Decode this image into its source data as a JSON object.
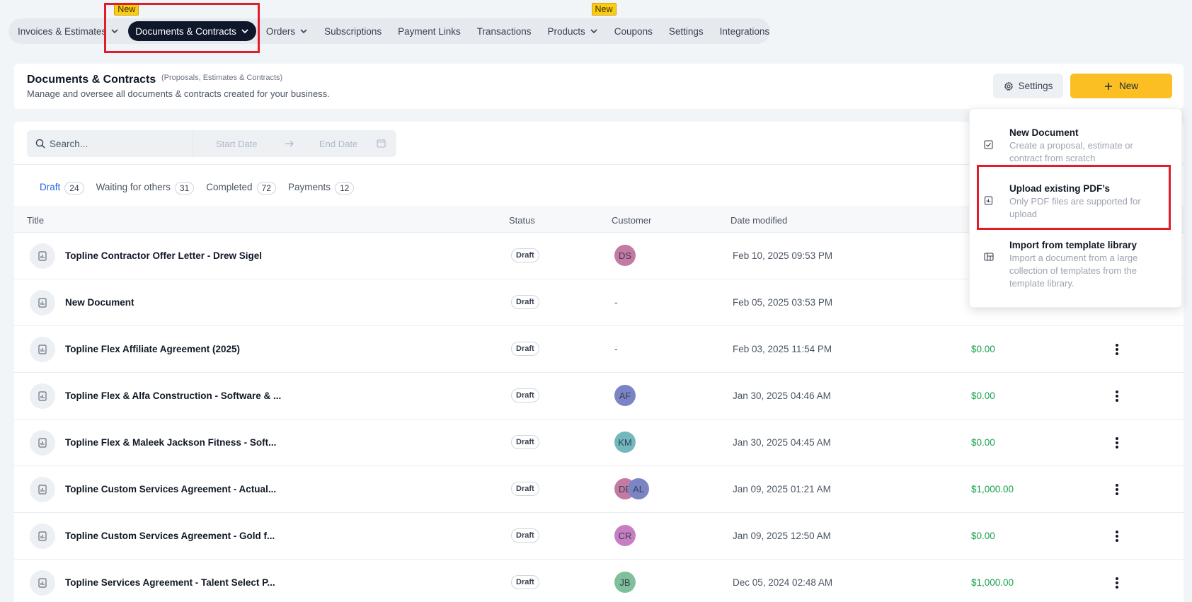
{
  "nav": {
    "items": [
      {
        "label": "Invoices & Estimates",
        "has_chevron": true
      },
      {
        "label": "Documents & Contracts",
        "has_chevron": true,
        "active": true,
        "badge": "New"
      },
      {
        "label": "Orders",
        "has_chevron": true
      },
      {
        "label": "Subscriptions"
      },
      {
        "label": "Payment Links"
      },
      {
        "label": "Transactions"
      },
      {
        "label": "Products",
        "has_chevron": true,
        "badge": "New"
      },
      {
        "label": "Coupons"
      },
      {
        "label": "Settings"
      },
      {
        "label": "Integrations"
      }
    ]
  },
  "header": {
    "title": "Documents & Contracts",
    "subtitle": "(Proposals, Estimates & Contracts)",
    "description": "Manage and oversee all documents & contracts created for your business.",
    "settings_label": "Settings",
    "new_label": "New"
  },
  "filters": {
    "search_placeholder": "Search...",
    "start_date_placeholder": "Start Date",
    "end_date_placeholder": "End Date"
  },
  "tabs": [
    {
      "label": "Draft",
      "count": "24",
      "active": true
    },
    {
      "label": "Waiting for others",
      "count": "31"
    },
    {
      "label": "Completed",
      "count": "72"
    },
    {
      "label": "Payments",
      "count": "12"
    }
  ],
  "table": {
    "columns": {
      "title": "Title",
      "status": "Status",
      "customer": "Customer",
      "date_modified": "Date modified"
    },
    "rows": [
      {
        "title": "Topline Contractor Offer Letter - Drew Sigel",
        "status": "Draft",
        "customers": [
          {
            "initials": "DS",
            "color": "#c47aa3"
          }
        ],
        "date": "Feb 10, 2025 09:53 PM",
        "amount": ""
      },
      {
        "title": "New Document",
        "status": "Draft",
        "customers": [],
        "customer_text": "-",
        "date": "Feb 05, 2025 03:53 PM",
        "amount": ""
      },
      {
        "title": "Topline Flex Affiliate Agreement (2025)",
        "status": "Draft",
        "customers": [],
        "customer_text": "-",
        "date": "Feb 03, 2025 11:54 PM",
        "amount": "$0.00"
      },
      {
        "title": "Topline Flex & Alfa Construction - Software & ...",
        "status": "Draft",
        "customers": [
          {
            "initials": "AF",
            "color": "#7b85c6"
          }
        ],
        "date": "Jan 30, 2025 04:46 AM",
        "amount": "$0.00"
      },
      {
        "title": "Topline Flex & Maleek Jackson Fitness - Soft...",
        "status": "Draft",
        "customers": [
          {
            "initials": "KM",
            "color": "#72b8bd"
          }
        ],
        "date": "Jan 30, 2025 04:45 AM",
        "amount": "$0.00"
      },
      {
        "title": "Topline Custom Services Agreement - Actual...",
        "status": "Draft",
        "customers": [
          {
            "initials": "DE",
            "color": "#c47aa3"
          },
          {
            "initials": "AL",
            "color": "#7b85c6"
          }
        ],
        "date": "Jan 09, 2025 01:21 AM",
        "amount": "$1,000.00"
      },
      {
        "title": "Topline Custom Services Agreement - Gold f...",
        "status": "Draft",
        "customers": [
          {
            "initials": "CR",
            "color": "#c77fc2"
          }
        ],
        "date": "Jan 09, 2025 12:50 AM",
        "amount": "$0.00"
      },
      {
        "title": "Topline Services Agreement - Talent Select P...",
        "status": "Draft",
        "customers": [
          {
            "initials": "JB",
            "color": "#7fc09a"
          }
        ],
        "date": "Dec 05, 2024 02:48 AM",
        "amount": "$1,000.00"
      }
    ]
  },
  "dropdown": {
    "items": [
      {
        "title": "New Document",
        "description": "Create a proposal, estimate or contract from scratch",
        "icon": "document-check-icon"
      },
      {
        "title": "Upload existing PDF’s",
        "description": "Only PDF files are supported for upload",
        "icon": "pdf-upload-icon"
      },
      {
        "title": "Import from template library",
        "description": "Import a document from a large collection of templates from the template library.",
        "icon": "template-library-icon"
      }
    ]
  },
  "colors": {
    "accent_yellow": "#fbbf24",
    "active_nav": "#0f172a",
    "tab_active": "#2563eb",
    "amount_green": "#16a34a",
    "highlight_red": "#e11d2a"
  }
}
